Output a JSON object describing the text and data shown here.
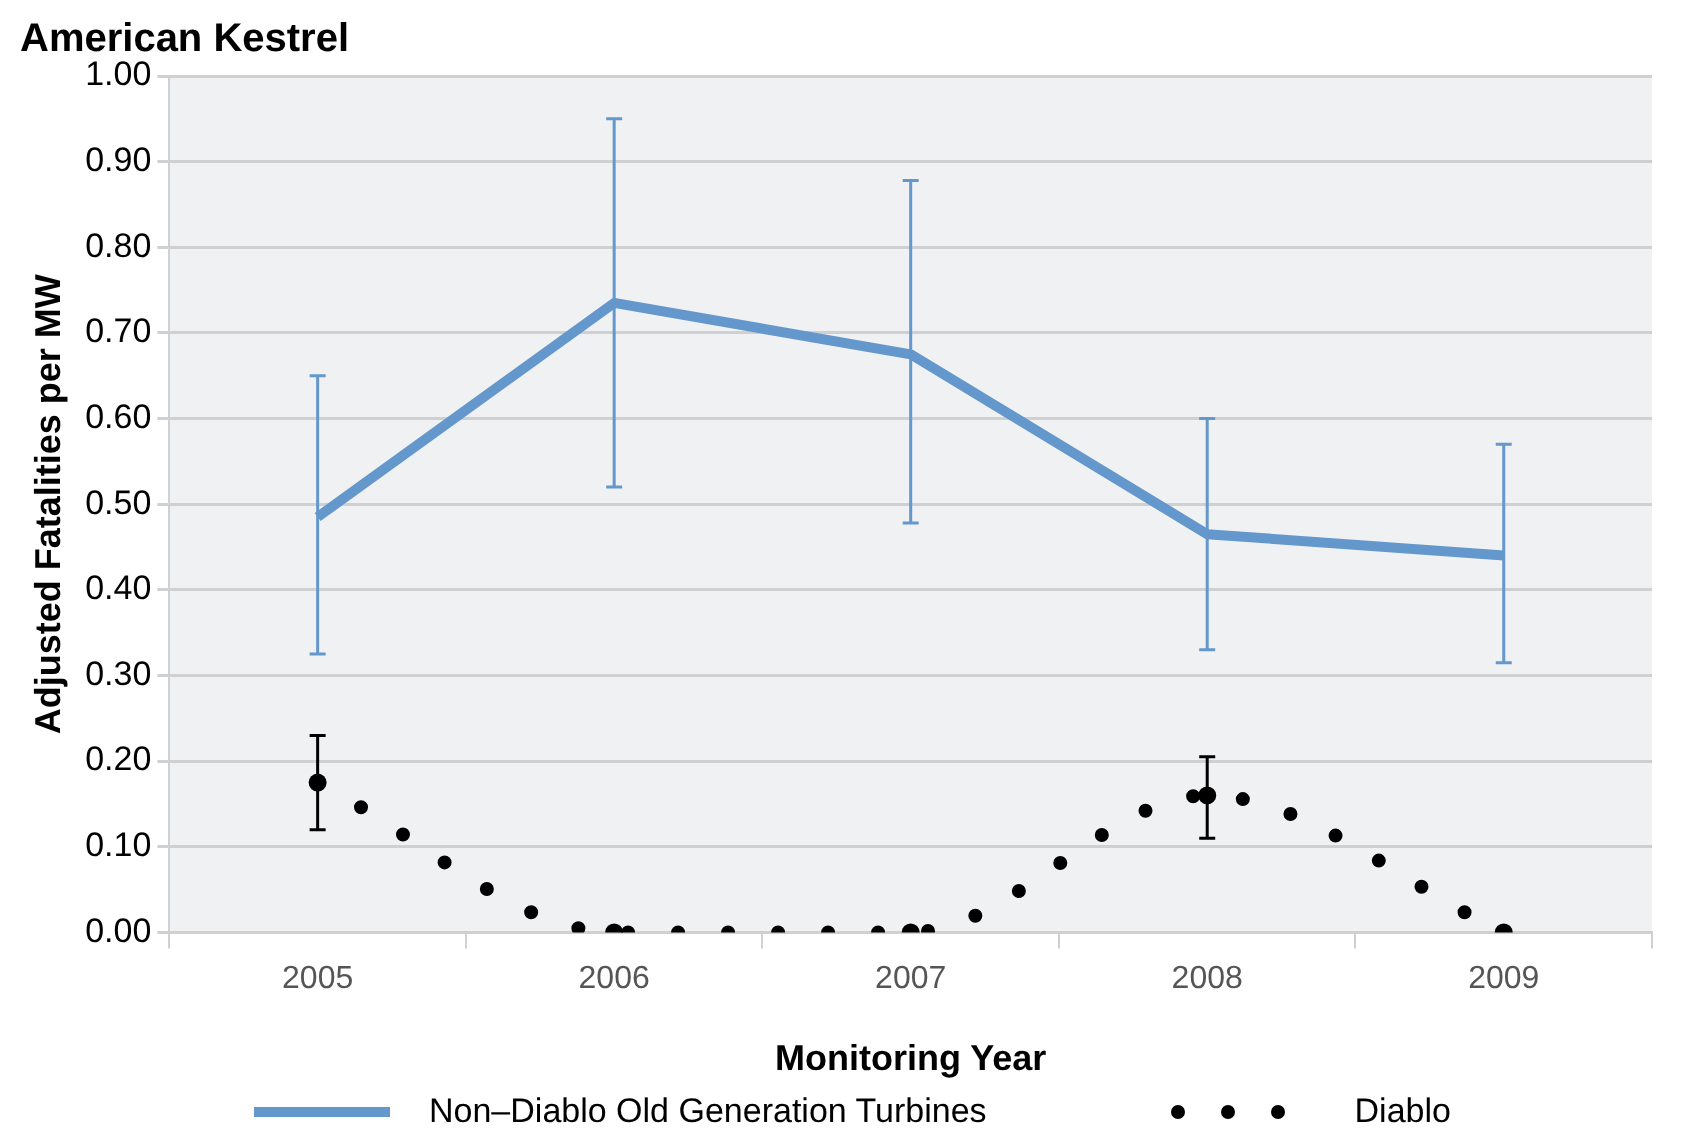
{
  "chart_data": {
    "type": "line",
    "title": "American Kestrel",
    "xlabel": "Monitoring Year",
    "ylabel": "Adjusted Fatalities per MW",
    "categories": [
      "2005",
      "2006",
      "2007",
      "2008",
      "2009"
    ],
    "series": [
      {
        "name": "Non–Diablo Old Generation Turbines",
        "color": "#6497cb",
        "values": [
          0.485,
          0.735,
          0.675,
          0.465,
          0.44
        ],
        "errors": [
          [
            0.325,
            0.65
          ],
          [
            0.52,
            0.95
          ],
          [
            0.478,
            0.878
          ],
          [
            0.33,
            0.6
          ],
          [
            0.315,
            0.57
          ]
        ],
        "line_style": "solid",
        "marker": "none"
      },
      {
        "name": "Diablo",
        "color": "#000000",
        "values": [
          0.175,
          0,
          0,
          0.16,
          0
        ],
        "errors": [
          [
            0.12,
            0.23
          ],
          null,
          null,
          [
            0.11,
            0.205
          ],
          null
        ],
        "line_style": "dotted",
        "marker": "circle"
      }
    ],
    "ylim": [
      0,
      1
    ],
    "yticks": [
      {
        "value": 0,
        "label": "0.00"
      },
      {
        "value": 0.1,
        "label": "0.10"
      },
      {
        "value": 0.2,
        "label": "0.20"
      },
      {
        "value": 0.3,
        "label": "0.30"
      },
      {
        "value": 0.4,
        "label": "0.40"
      },
      {
        "value": 0.5,
        "label": "0.50"
      },
      {
        "value": 0.6,
        "label": "0.60"
      },
      {
        "value": 0.7,
        "label": "0.70"
      },
      {
        "value": 0.8,
        "label": "0.80"
      },
      {
        "value": 0.9,
        "label": "0.90"
      },
      {
        "value": 1,
        "label": "1.00"
      }
    ],
    "grid": "y",
    "legend": "bottom"
  }
}
